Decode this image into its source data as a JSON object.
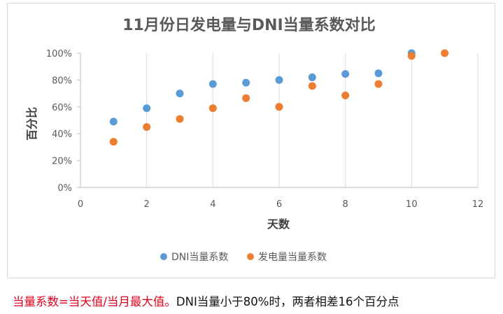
{
  "chart_data": {
    "type": "scatter",
    "title": "11月份日发电量与DNI当量系数对比",
    "xlabel": "天数",
    "ylabel": "百分比",
    "xlim": [
      0,
      12
    ],
    "ylim": [
      0,
      100
    ],
    "x_ticks": [
      "0",
      "2",
      "4",
      "6",
      "8",
      "10",
      "12"
    ],
    "y_ticks": [
      "0%",
      "20%",
      "40%",
      "60%",
      "80%",
      "100%"
    ],
    "grid": "vertical",
    "legend_position": "bottom",
    "series": [
      {
        "name": "DNI当量系数",
        "color": "#5b9bd5",
        "points": [
          [
            1,
            49
          ],
          [
            2,
            59
          ],
          [
            3,
            70
          ],
          [
            4,
            77
          ],
          [
            5,
            78
          ],
          [
            6,
            80
          ],
          [
            7,
            82
          ],
          [
            8,
            84.5
          ],
          [
            9,
            85
          ],
          [
            10,
            100
          ]
        ]
      },
      {
        "name": "发电量当量系数",
        "color": "#ed7d31",
        "points": [
          [
            1,
            34
          ],
          [
            2,
            45
          ],
          [
            3,
            51
          ],
          [
            4,
            59
          ],
          [
            5,
            66.5
          ],
          [
            6,
            60
          ],
          [
            7,
            75.5
          ],
          [
            8,
            68.5
          ],
          [
            9,
            77
          ],
          [
            10,
            98
          ],
          [
            11,
            100
          ]
        ]
      }
    ]
  },
  "caption": {
    "red_part": "当量系数=当天值/当月最大值。",
    "black_part": "DNI当量小于80%时，两者相差16个百分点"
  }
}
